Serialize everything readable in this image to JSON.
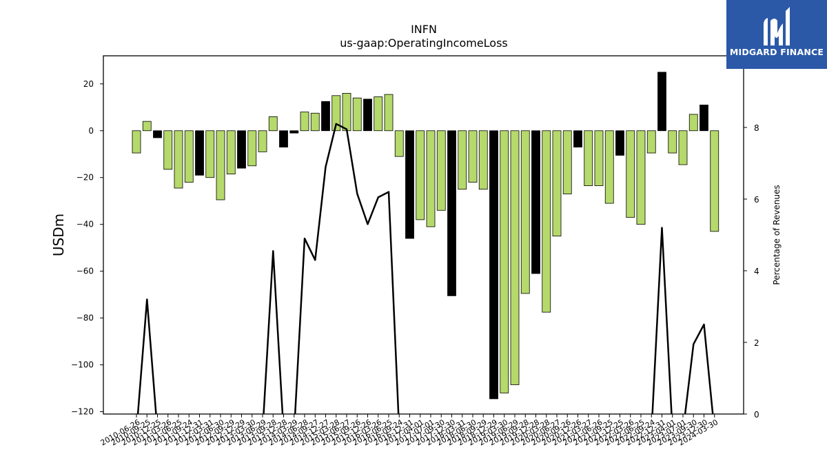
{
  "chart_data": {
    "type": "bar",
    "title": "INFN",
    "subtitle": "us-gaap:OperatingIncomeLoss",
    "ylabel": "USDm",
    "y2label": "Percentage of Revenues",
    "ylim": [
      -121,
      32
    ],
    "y2lim": [
      0,
      10
    ],
    "yticks": [
      20,
      0,
      -20,
      -40,
      -60,
      -80,
      -100,
      -120
    ],
    "y2ticks": [
      0,
      2,
      4,
      6,
      8,
      10
    ],
    "colors": {
      "positive_pct": "#b5d96b",
      "highlight": "#000000",
      "line": "#000000"
    },
    "x_tick_labels": [
      "2010-06-26",
      "2010-09-25",
      "2010-12-25",
      "2011-03-26",
      "2011-06-25",
      "2011-09-24",
      "2011-12-31",
      "2012-03-31",
      "2012-06-30",
      "2012-09-29",
      "2012-12-29",
      "2013-03-30",
      "2013-06-29",
      "2013-09-28",
      "2013-12-28",
      "2014-03-29",
      "2014-06-28",
      "2014-09-27",
      "2014-12-27",
      "2015-03-28",
      "2015-06-27",
      "2015-09-26",
      "2015-12-26",
      "2016-03-26",
      "2016-06-25",
      "2016-09-24",
      "2016-12-31",
      "2017-04-01",
      "2017-07-01",
      "2017-09-30",
      "2017-12-30",
      "2018-03-31",
      "2018-06-30",
      "2018-09-29",
      "2018-12-29",
      "2019-03-30",
      "2019-06-29",
      "2019-09-28",
      "2019-12-28",
      "2020-03-28",
      "2020-06-27",
      "2020-09-26",
      "2020-12-26",
      "2021-03-27",
      "2021-06-26",
      "2021-09-25",
      "2021-12-25",
      "2022-03-26",
      "2022-06-25",
      "2022-09-24",
      "2022-12-31",
      "2023-04-01",
      "2023-07-01",
      "2023-09-30",
      "2023-12-30",
      "2024-03-30"
    ],
    "values": [
      -9.5,
      4,
      -3,
      -16.5,
      -24.5,
      -22,
      -19,
      -20,
      -29.5,
      -18.5,
      -16,
      -15,
      -9,
      6,
      -7,
      -1,
      8,
      7.5,
      12.5,
      15,
      16,
      14,
      13.5,
      14.5,
      15.5,
      -11,
      -46,
      -38,
      -41,
      -34,
      -70.5,
      -25,
      -22,
      -25,
      -114.5,
      -112,
      -108.5,
      -69.5,
      -61,
      -77.5,
      -45,
      -27,
      -7,
      -23.5,
      -23.5,
      -31,
      -10.5,
      -37,
      -40,
      -9.5,
      25,
      -9.5,
      -14.5,
      7,
      11,
      -43
    ],
    "highlight": [
      false,
      false,
      true,
      false,
      false,
      false,
      true,
      false,
      false,
      false,
      true,
      false,
      false,
      false,
      true,
      true,
      false,
      false,
      true,
      false,
      false,
      false,
      true,
      false,
      false,
      false,
      true,
      false,
      false,
      false,
      true,
      false,
      false,
      false,
      true,
      false,
      false,
      false,
      true,
      false,
      false,
      false,
      true,
      false,
      false,
      false,
      true,
      false,
      false,
      false,
      true,
      false,
      false,
      false,
      true,
      false
    ],
    "line_series": {
      "name": "",
      "values": [
        -0.5,
        3.2,
        -0.5,
        -0.5,
        -0.5,
        -0.5,
        -0.5,
        -0.5,
        -0.5,
        -0.5,
        -0.5,
        -0.5,
        -0.5,
        4.55,
        -0.5,
        -0.5,
        4.9,
        4.3,
        6.9,
        8.1,
        7.95,
        6.15,
        5.3,
        6.05,
        6.2,
        -0.5,
        -0.5,
        -0.5,
        -0.5,
        -0.5,
        -0.5,
        -0.5,
        -0.5,
        -0.5,
        -0.5,
        -0.5,
        -0.5,
        -0.5,
        -0.5,
        -0.5,
        -0.5,
        -0.5,
        -0.5,
        -0.5,
        -0.5,
        -0.5,
        -0.5,
        -0.5,
        -0.5,
        -0.5,
        5.2,
        -0.5,
        -0.5,
        1.95,
        2.5,
        -0.5
      ]
    }
  },
  "logo": {
    "text": "MIDGARD FINANCE"
  }
}
